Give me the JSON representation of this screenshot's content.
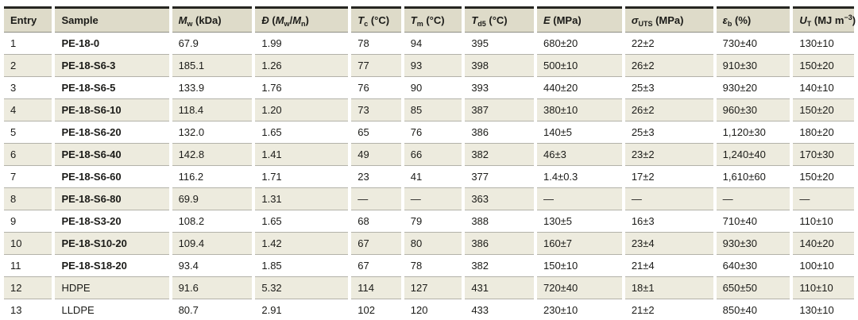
{
  "table": {
    "columns": [
      {
        "id": "entry",
        "parts": [
          [
            "",
            "Entry"
          ]
        ]
      },
      {
        "id": "sample",
        "parts": [
          [
            "",
            "Sample"
          ]
        ]
      },
      {
        "id": "mw",
        "parts": [
          [
            "i",
            "M"
          ],
          [
            "sub",
            "w"
          ],
          [
            "",
            " (kDa)"
          ]
        ]
      },
      {
        "id": "dispersity",
        "parts": [
          [
            "i",
            "Đ"
          ],
          [
            "",
            " ("
          ],
          [
            "i",
            "M"
          ],
          [
            "sub",
            "w"
          ],
          [
            "",
            "/"
          ],
          [
            "i",
            "M"
          ],
          [
            "sub",
            "n"
          ],
          [
            "",
            ")"
          ]
        ]
      },
      {
        "id": "tc",
        "parts": [
          [
            "i",
            "T"
          ],
          [
            "sub",
            "c"
          ],
          [
            "",
            " (°C)"
          ]
        ]
      },
      {
        "id": "tm",
        "parts": [
          [
            "i",
            "T"
          ],
          [
            "sub",
            "m"
          ],
          [
            "",
            " (°C)"
          ]
        ]
      },
      {
        "id": "td5",
        "parts": [
          [
            "i",
            "T"
          ],
          [
            "sub",
            "d5"
          ],
          [
            "",
            " (°C)"
          ]
        ]
      },
      {
        "id": "e-modulus",
        "parts": [
          [
            "i",
            "E"
          ],
          [
            "",
            " (MPa)"
          ]
        ]
      },
      {
        "id": "sigma-uts",
        "parts": [
          [
            "i",
            "σ"
          ],
          [
            "sub",
            "UTS"
          ],
          [
            "",
            " (MPa)"
          ]
        ]
      },
      {
        "id": "epsilon-b",
        "parts": [
          [
            "i",
            "ε"
          ],
          [
            "sub",
            "b"
          ],
          [
            "",
            " (%)"
          ]
        ]
      },
      {
        "id": "ut",
        "parts": [
          [
            "i",
            "U"
          ],
          [
            "sub",
            "T"
          ],
          [
            "",
            " (MJ m"
          ],
          [
            "sup",
            "−3"
          ],
          [
            "",
            ")"
          ]
        ]
      }
    ],
    "rows": [
      {
        "entry": "1",
        "sample": "PE-18-0",
        "sample_bold": true,
        "values": [
          "67.9",
          "1.99",
          "78",
          "94",
          "395",
          "680±20",
          "22±2",
          "730±40",
          "130±10"
        ]
      },
      {
        "entry": "2",
        "sample": "PE-18-S6-3",
        "sample_bold": true,
        "values": [
          "185.1",
          "1.26",
          "77",
          "93",
          "398",
          "500±10",
          "26±2",
          "910±30",
          "150±20"
        ]
      },
      {
        "entry": "3",
        "sample": "PE-18-S6-5",
        "sample_bold": true,
        "values": [
          "133.9",
          "1.76",
          "76",
          "90",
          "393",
          "440±20",
          "25±3",
          "930±20",
          "140±10"
        ]
      },
      {
        "entry": "4",
        "sample": "PE-18-S6-10",
        "sample_bold": true,
        "values": [
          "118.4",
          "1.20",
          "73",
          "85",
          "387",
          "380±10",
          "26±2",
          "960±30",
          "150±20"
        ]
      },
      {
        "entry": "5",
        "sample": "PE-18-S6-20",
        "sample_bold": true,
        "values": [
          "132.0",
          "1.65",
          "65",
          "76",
          "386",
          "140±5",
          "25±3",
          "1,120±30",
          "180±20"
        ]
      },
      {
        "entry": "6",
        "sample": "PE-18-S6-40",
        "sample_bold": true,
        "values": [
          "142.8",
          "1.41",
          "49",
          "66",
          "382",
          "46±3",
          "23±2",
          "1,240±40",
          "170±30"
        ]
      },
      {
        "entry": "7",
        "sample": "PE-18-S6-60",
        "sample_bold": true,
        "values": [
          "116.2",
          "1.71",
          "23",
          "41",
          "377",
          "1.4±0.3",
          "17±2",
          "1,610±60",
          "150±20"
        ]
      },
      {
        "entry": "8",
        "sample": "PE-18-S6-80",
        "sample_bold": true,
        "values": [
          "69.9",
          "1.31",
          "—",
          "—",
          "363",
          "—",
          "—",
          "—",
          "—"
        ]
      },
      {
        "entry": "9",
        "sample": "PE-18-S3-20",
        "sample_bold": true,
        "values": [
          "108.2",
          "1.65",
          "68",
          "79",
          "388",
          "130±5",
          "16±3",
          "710±40",
          "110±10"
        ]
      },
      {
        "entry": "10",
        "sample": "PE-18-S10-20",
        "sample_bold": true,
        "values": [
          "109.4",
          "1.42",
          "67",
          "80",
          "386",
          "160±7",
          "23±4",
          "930±30",
          "140±20"
        ]
      },
      {
        "entry": "11",
        "sample": "PE-18-S18-20",
        "sample_bold": true,
        "values": [
          "93.4",
          "1.85",
          "67",
          "78",
          "382",
          "150±10",
          "21±4",
          "640±30",
          "100±10"
        ]
      },
      {
        "entry": "12",
        "sample": "HDPE",
        "sample_bold": false,
        "values": [
          "91.6",
          "5.32",
          "114",
          "127",
          "431",
          "720±40",
          "18±1",
          "650±50",
          "110±10"
        ]
      },
      {
        "entry": "13",
        "sample": "LLDPE",
        "sample_bold": false,
        "values": [
          "80.7",
          "2.91",
          "102",
          "120",
          "433",
          "230±10",
          "21±2",
          "850±40",
          "130±10"
        ]
      }
    ]
  },
  "colors": {
    "header_background": "#dedbc9",
    "stripe_background": "#edebde",
    "top_rule": "#262621",
    "row_rule": "#b3b2a9",
    "text": "#1b1b18"
  }
}
